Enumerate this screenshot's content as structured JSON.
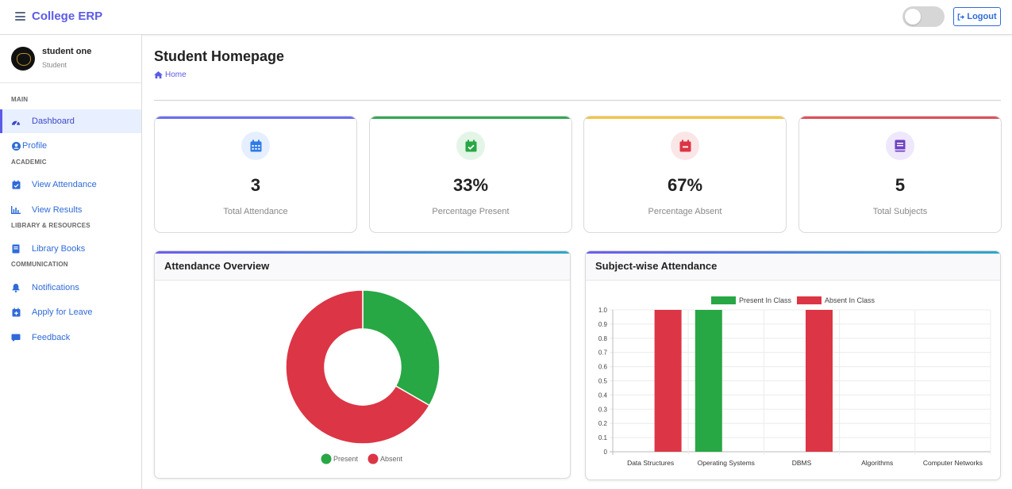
{
  "app": {
    "brand": "College ERP",
    "logout_label": "Logout"
  },
  "user": {
    "name": "student one",
    "role": "Student"
  },
  "sidebar": {
    "sections": {
      "main": "MAIN",
      "academic": "ACADEMIC",
      "library": "LIBRARY & RESOURCES",
      "communication": "COMMUNICATION"
    },
    "items": [
      {
        "label": "Dashboard",
        "icon": "dashboard-icon"
      },
      {
        "label": "Profile",
        "icon": "user-circle-icon"
      },
      {
        "label": "View Attendance",
        "icon": "calendar-check-icon"
      },
      {
        "label": "View Results",
        "icon": "bar-chart-icon"
      },
      {
        "label": "Library Books",
        "icon": "book-icon"
      },
      {
        "label": "Notifications",
        "icon": "bell-icon"
      },
      {
        "label": "Apply for Leave",
        "icon": "calendar-plus-icon"
      },
      {
        "label": "Feedback",
        "icon": "comment-icon"
      }
    ]
  },
  "page": {
    "title": "Student Homepage",
    "breadcrumb": "Home"
  },
  "stats": [
    {
      "value": "3",
      "label": "Total Attendance",
      "color": "#6b6ff0",
      "icon": "calendar-icon"
    },
    {
      "value": "33%",
      "label": "Percentage Present",
      "color": "#34a853",
      "icon": "calendar-check-icon"
    },
    {
      "value": "67%",
      "label": "Percentage Absent",
      "color": "#f4c542",
      "icon": "calendar-minus-icon"
    },
    {
      "value": "5",
      "label": "Total Subjects",
      "color": "#e0505b",
      "icon": "book-icon"
    }
  ],
  "panels": {
    "overview_title": "Attendance Overview",
    "subject_title": "Subject-wise Attendance"
  },
  "chart_data": [
    {
      "type": "pie",
      "categories": [
        "Present",
        "Absent"
      ],
      "values": [
        1,
        2
      ],
      "colors": [
        "#28a745",
        "#dc3545"
      ],
      "legend": "bottom"
    },
    {
      "type": "bar",
      "categories": [
        "Data Structures",
        "Operating Systems",
        "DBMS",
        "Algorithms",
        "Computer Networks"
      ],
      "series": [
        {
          "name": "Present In Class",
          "values": [
            0,
            1,
            0,
            0,
            0
          ],
          "color": "#28a745"
        },
        {
          "name": "Absent In Class",
          "values": [
            1,
            0,
            1,
            0,
            0
          ],
          "color": "#dc3545"
        }
      ],
      "yticks": [
        "0",
        "0.1",
        "0.2",
        "0.3",
        "0.4",
        "0.5",
        "0.6",
        "0.7",
        "0.8",
        "0.9",
        "1.0"
      ],
      "ylim": [
        0,
        1
      ],
      "grid": true,
      "legend": "top"
    }
  ]
}
